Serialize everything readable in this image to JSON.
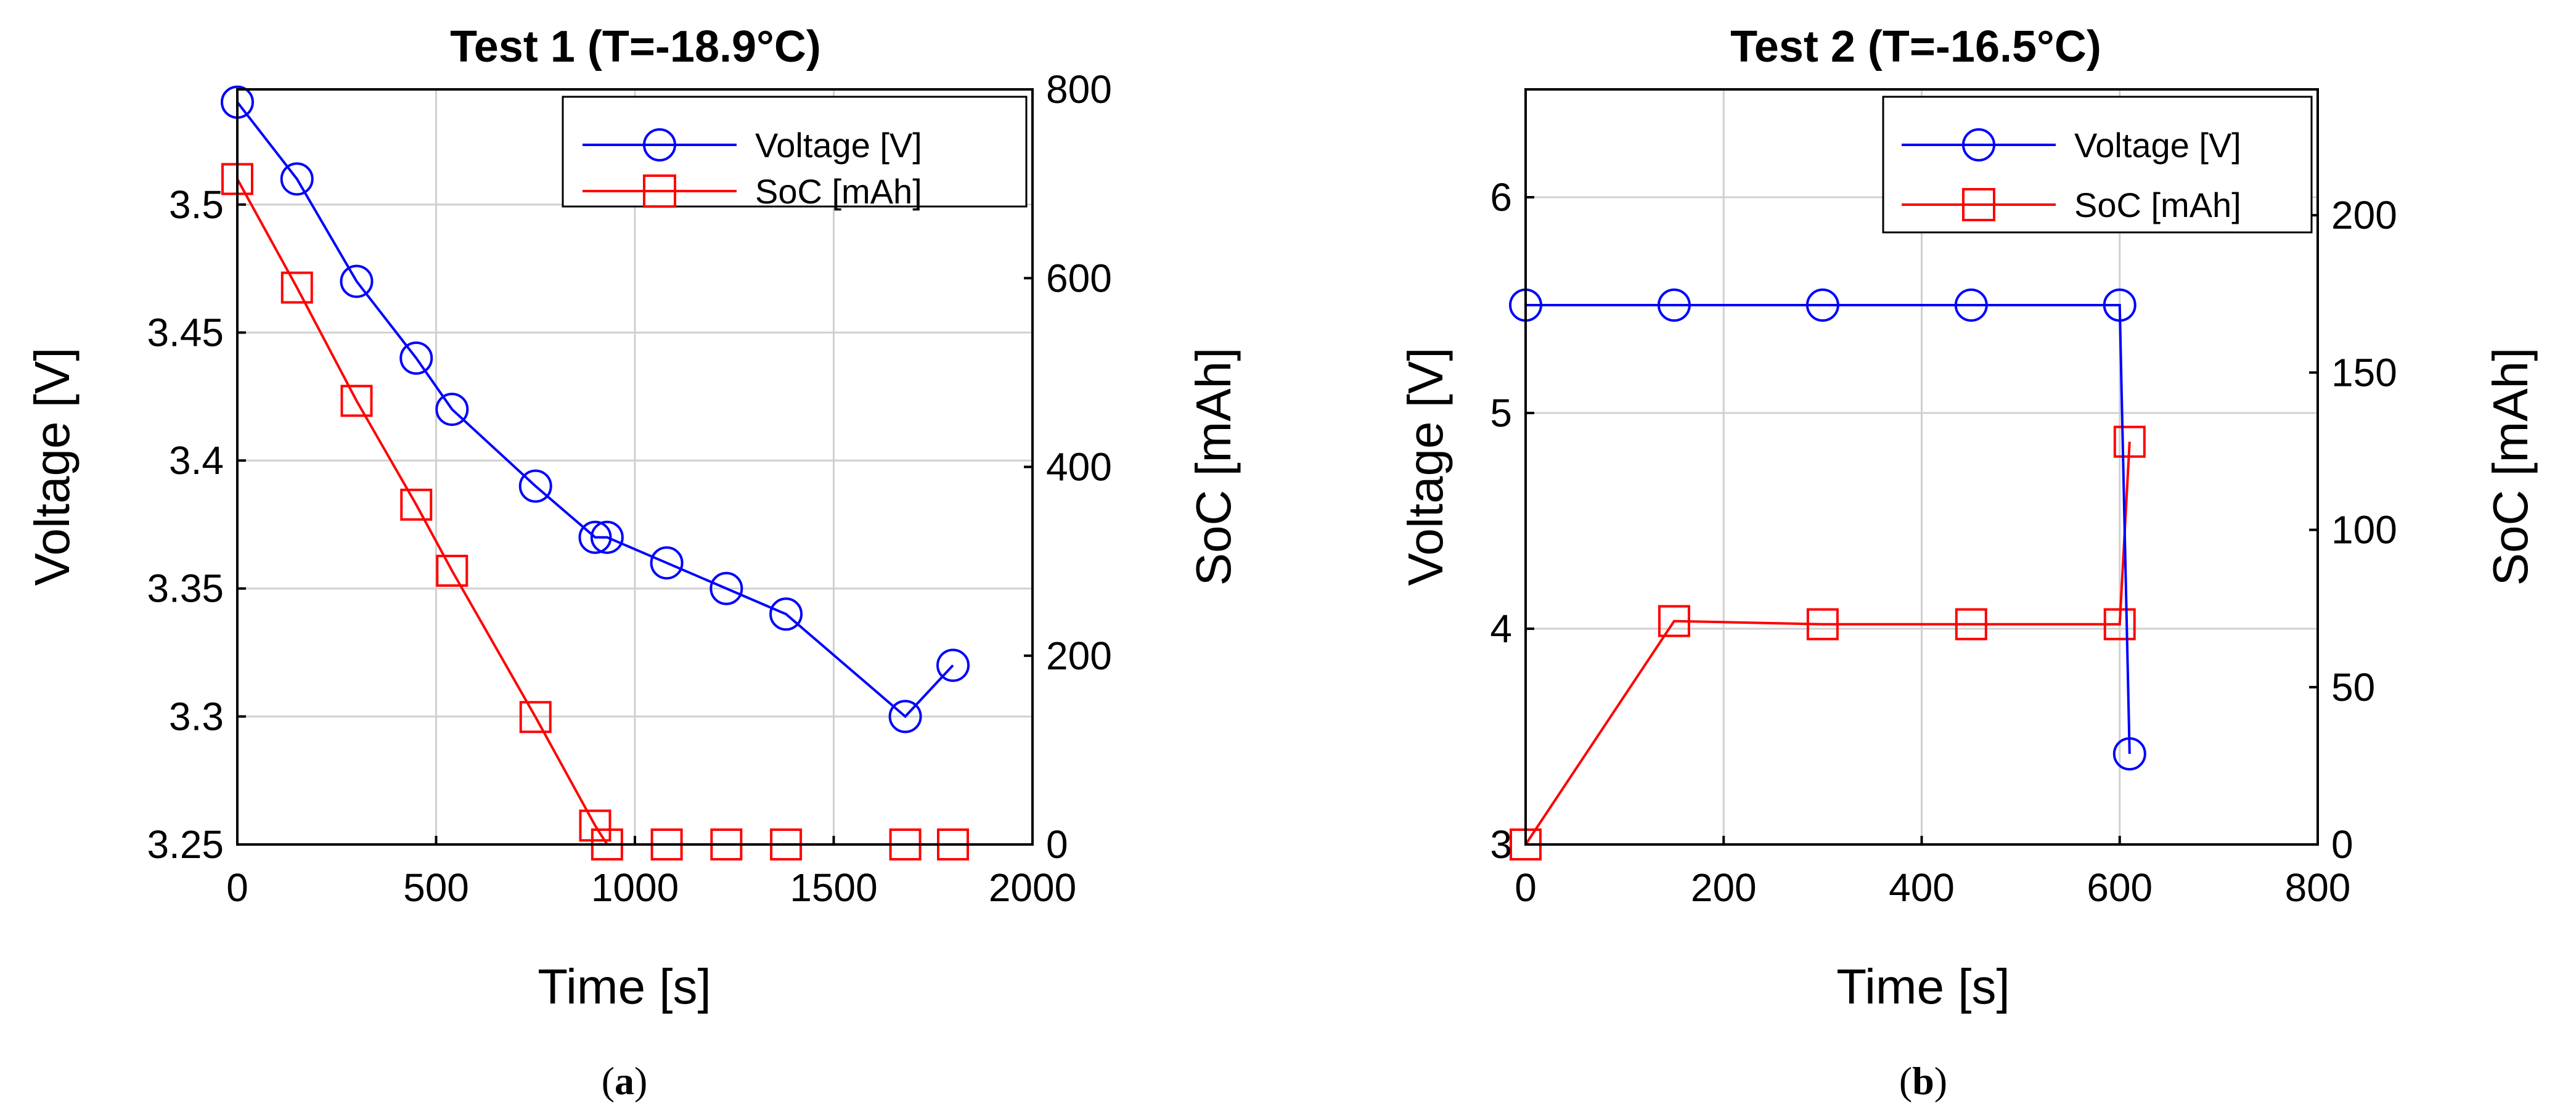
{
  "colors": {
    "voltage": "#0000ff",
    "soc": "#ff0000"
  },
  "captions": {
    "a": "(a)",
    "a_letter": "a",
    "b": "(b)",
    "b_letter": "b"
  },
  "chart_data": [
    {
      "type": "line",
      "title": "Test 1 (T=-18.9°C)",
      "xlabel": "Time [s]",
      "ylabel": "Voltage [V]",
      "y2label": "SoC [mAh]",
      "xlim": [
        0,
        2000
      ],
      "ylim": [
        3.25,
        3.545
      ],
      "y2lim": [
        0,
        800
      ],
      "xticks": [
        0,
        500,
        1000,
        1500,
        2000
      ],
      "yticks": [
        3.25,
        3.3,
        3.35,
        3.4,
        3.45,
        3.5
      ],
      "ytick_labels": [
        "3.25",
        "3.3",
        "3.35",
        "3.4",
        "3.45",
        "3.5"
      ],
      "y2ticks": [
        0,
        200,
        400,
        600,
        800
      ],
      "grid": true,
      "legend_position": "top-right",
      "series": [
        {
          "name": "Voltage [V]",
          "axis": "left",
          "marker": "circle",
          "x": [
            0,
            150,
            300,
            450,
            540,
            750,
            900,
            930,
            1080,
            1230,
            1380,
            1680,
            1800
          ],
          "y": [
            3.54,
            3.51,
            3.47,
            3.44,
            3.42,
            3.39,
            3.37,
            3.37,
            3.36,
            3.35,
            3.34,
            3.3,
            3.32
          ]
        },
        {
          "name": "SoC [mAh]",
          "axis": "right",
          "marker": "square",
          "x": [
            0,
            150,
            300,
            450,
            540,
            750,
            900,
            930,
            1080,
            1230,
            1380,
            1680,
            1800
          ],
          "y": [
            705,
            590,
            470,
            360,
            290,
            135,
            20,
            0,
            0,
            0,
            0,
            0,
            0
          ]
        }
      ]
    },
    {
      "type": "line",
      "title": "Test 2 (T=-16.5°C)",
      "xlabel": "Time [s]",
      "ylabel": "Voltage [V]",
      "y2label": "SoC [mAh]",
      "xlim": [
        0,
        800
      ],
      "ylim": [
        3,
        6.5
      ],
      "y2lim": [
        0,
        240
      ],
      "xticks": [
        0,
        200,
        400,
        600,
        800
      ],
      "yticks": [
        3,
        4,
        5,
        6
      ],
      "ytick_labels": [
        "3",
        "4",
        "5",
        "6"
      ],
      "y2ticks": [
        0,
        50,
        100,
        150,
        200
      ],
      "grid": true,
      "legend_position": "top-right",
      "series": [
        {
          "name": "Voltage [V]",
          "axis": "left",
          "marker": "circle",
          "x": [
            0,
            150,
            300,
            450,
            600,
            610
          ],
          "y": [
            5.5,
            5.5,
            5.5,
            5.5,
            5.5,
            3.42
          ]
        },
        {
          "name": "SoC [mAh]",
          "axis": "right",
          "marker": "square",
          "x": [
            0,
            150,
            300,
            450,
            600,
            610
          ],
          "y": [
            0,
            71,
            70,
            70,
            70,
            128
          ]
        }
      ]
    }
  ]
}
